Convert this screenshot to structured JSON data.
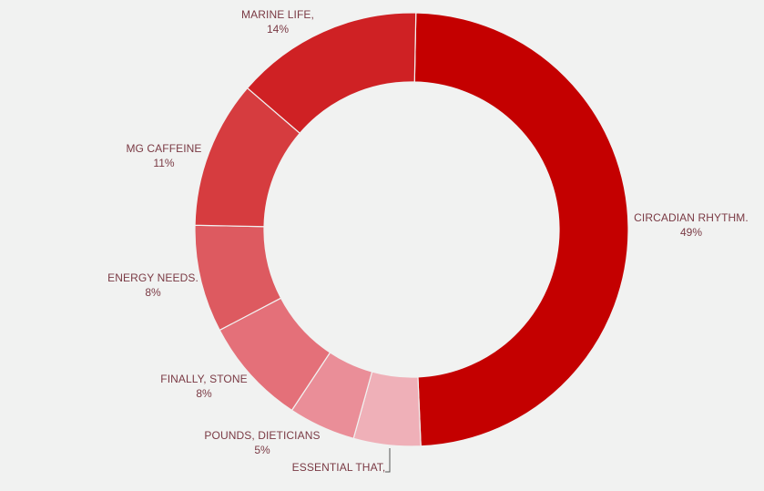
{
  "chart_data": {
    "type": "pie",
    "donut": true,
    "title": "",
    "slices": [
      {
        "label": "CIRCADIAN RHYTHM.",
        "percent_label": "49%",
        "value": 49,
        "color": "#c40000"
      },
      {
        "label": "ESSENTIAL THAT,",
        "percent_label": "",
        "value": 5,
        "color": "#efb0b8"
      },
      {
        "label": "POUNDS, DIETICIANS",
        "percent_label": "5%",
        "value": 5,
        "color": "#ea8e98"
      },
      {
        "label": "FINALLY, STONE",
        "percent_label": "8%",
        "value": 8,
        "color": "#e47079"
      },
      {
        "label": "ENERGY NEEDS.",
        "percent_label": "8%",
        "value": 8,
        "color": "#dd5a60"
      },
      {
        "label": "MG CAFFEINE",
        "percent_label": "11%",
        "value": 11,
        "color": "#d63c3f"
      },
      {
        "label": "MARINE LIFE,",
        "percent_label": "14%",
        "value": 14,
        "color": "#cf2124"
      }
    ],
    "legend": "none"
  }
}
